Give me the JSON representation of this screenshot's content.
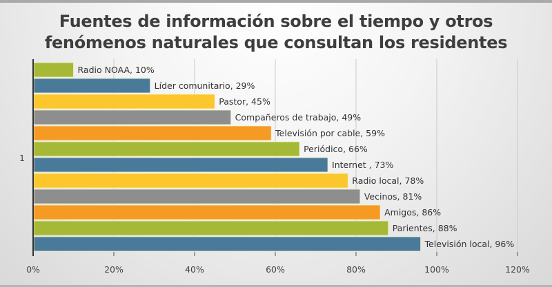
{
  "chart_data": {
    "type": "bar",
    "orientation": "horizontal",
    "title_lines": [
      "Fuentes de información sobre el tiempo y otros",
      "fenómenos naturales que consultan los residentes"
    ],
    "categories": [
      "Radio NOAA",
      "Líder comunitario",
      "Pastor",
      "Compañeros de trabajo",
      "Televisión por cable",
      "Periódico",
      "Internet ",
      "Radio local",
      "Vecinos",
      "Amigos",
      "Parientes",
      "Televisión local"
    ],
    "values": [
      10,
      29,
      45,
      49,
      59,
      66,
      73,
      78,
      81,
      86,
      88,
      96
    ],
    "data_labels": [
      "Radio NOAA, 10%",
      "Líder comunitario, 29%",
      "Pastor, 45%",
      "Compañeros de trabajo, 49%",
      "Televisión por cable, 59%",
      "Periódico, 66%",
      "Internet , 73%",
      "Radio local, 78%",
      "Vecinos, 81%",
      "Amigos, 86%",
      "Parientes, 88%",
      "Televisión local, 96%"
    ],
    "bar_colors": [
      "#a5b936",
      "#4a7a99",
      "#fbc72c",
      "#8e8e8e",
      "#f59a23",
      "#a5b936",
      "#4a7a99",
      "#fbc72c",
      "#8e8e8e",
      "#f59a23",
      "#a5b936",
      "#4a7a99"
    ],
    "xlim": [
      0,
      120
    ],
    "x_ticks": [
      0,
      20,
      40,
      60,
      80,
      100,
      120
    ],
    "x_tick_labels": [
      "0%",
      "20%",
      "40%",
      "60%",
      "80%",
      "100%",
      "120%"
    ],
    "y_axis_tick_label": "1",
    "xlabel": "",
    "ylabel": "",
    "grid": "vertical",
    "legend": "none"
  }
}
